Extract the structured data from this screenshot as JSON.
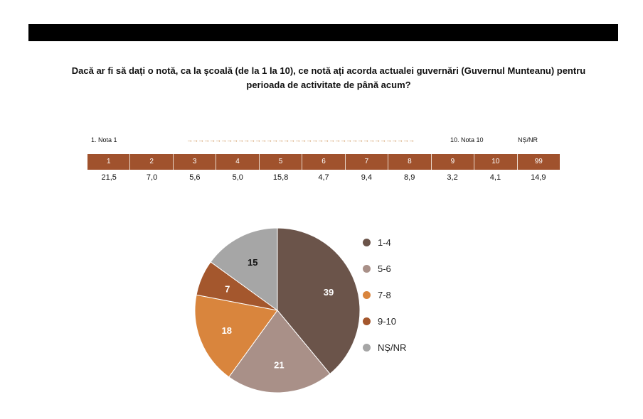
{
  "question": "Dacă ar fi să dați o notă, ca la școală (de la 1 la 10), ce notă ați acorda actualei guvernări (Guvernul Munteanu) pentru perioada de activitate de până acum?",
  "scale": {
    "min_label": "1. Nota 1",
    "max_label": "10. Nota 10",
    "ns_label": "NȘ/NR",
    "arrows": "→→→→→→→→→→→→→→→→→→→→→→→→→→→→→→→→→→→→→→→→→→→→→→→→→"
  },
  "grades": [
    "1",
    "2",
    "3",
    "4",
    "5",
    "6",
    "7",
    "8",
    "9",
    "10",
    "99"
  ],
  "grade_values": [
    "21,5",
    "7,0",
    "5,6",
    "5,0",
    "15,8",
    "4,7",
    "9,4",
    "8,9",
    "3,2",
    "4,1",
    "14,9"
  ],
  "chart_data": {
    "type": "pie",
    "categories": [
      "1-4",
      "5-6",
      "7-8",
      "9-10",
      "NȘ/NR"
    ],
    "values": [
      39,
      21,
      18,
      7,
      15
    ],
    "colors": [
      "#6b544a",
      "#a99088",
      "#d9853d",
      "#a4572d",
      "#a6a6a6"
    ],
    "label_colors": [
      "#ffffff",
      "#ffffff",
      "#ffffff",
      "#ffffff",
      "#111111"
    ]
  }
}
